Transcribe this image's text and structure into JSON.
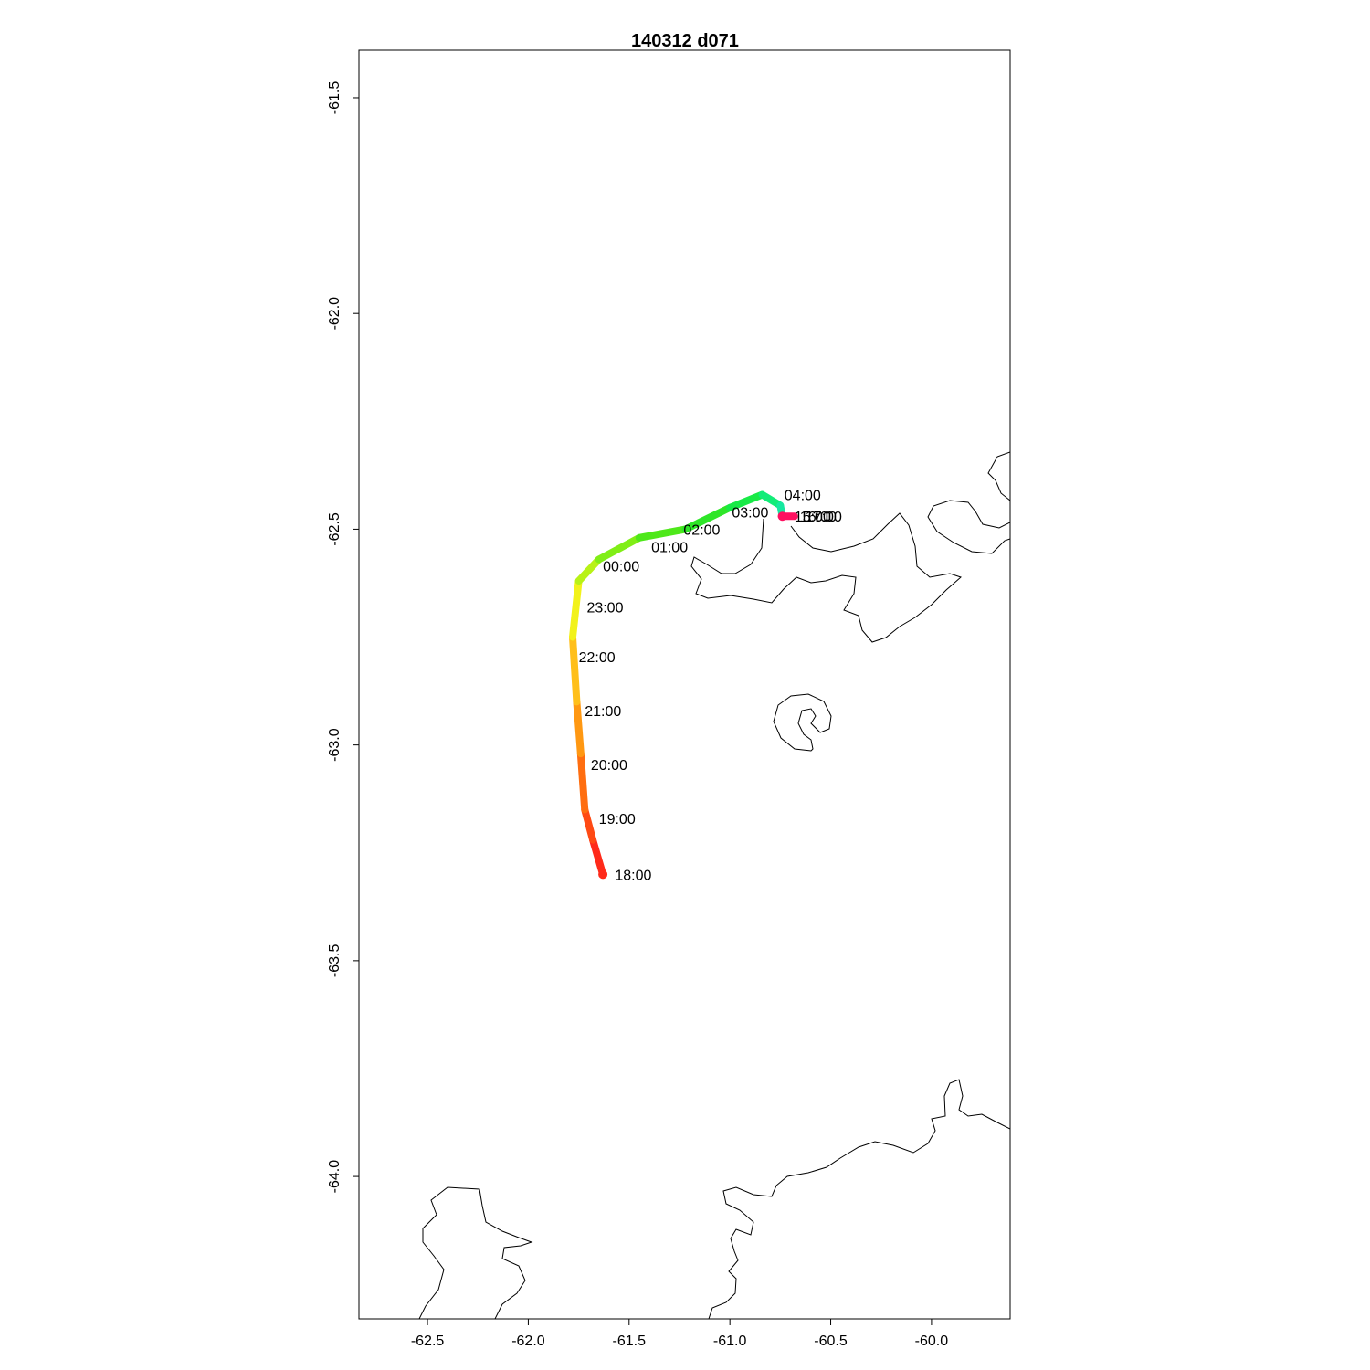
{
  "title": "140312   d071",
  "chart_data": {
    "type": "line",
    "title": "140312   d071",
    "xlabel": "",
    "ylabel": "",
    "xlim": [
      -62.84,
      -59.61
    ],
    "ylim": [
      -64.33,
      -61.39
    ],
    "x_ticks": [
      "-62.5",
      "-62.0",
      "-61.5",
      "-61.0",
      "-60.5",
      "-60.0"
    ],
    "y_ticks": [
      "-61.5",
      "-62.0",
      "-62.5",
      "-63.0",
      "-63.5",
      "-64.0"
    ],
    "grid": false,
    "track": [
      {
        "lon": -61.63,
        "lat": -63.3,
        "color": "#ff2a1a"
      },
      {
        "lon": -61.68,
        "lat": -63.22,
        "color": "#ff4a14"
      },
      {
        "lon": -61.72,
        "lat": -63.15,
        "color": "#ff6e10"
      },
      {
        "lon": -61.74,
        "lat": -63.02,
        "color": "#ff9812"
      },
      {
        "lon": -61.76,
        "lat": -62.9,
        "color": "#ffbf1a"
      },
      {
        "lon": -61.78,
        "lat": -62.75,
        "color": "#f2f21a"
      },
      {
        "lon": -61.75,
        "lat": -62.62,
        "color": "#b8f216"
      },
      {
        "lon": -61.65,
        "lat": -62.57,
        "color": "#80ee16"
      },
      {
        "lon": -61.45,
        "lat": -62.52,
        "color": "#4ee81a"
      },
      {
        "lon": -61.22,
        "lat": -62.5,
        "color": "#2ee628"
      },
      {
        "lon": -61.0,
        "lat": -62.45,
        "color": "#18ea46"
      },
      {
        "lon": -60.84,
        "lat": -62.42,
        "color": "#12ec78"
      },
      {
        "lon": -60.75,
        "lat": -62.445,
        "color": "#16e8a0"
      },
      {
        "lon": -60.74,
        "lat": -62.47,
        "color": "#ff1060"
      },
      {
        "lon": -60.68,
        "lat": -62.47,
        "color": "#ff1060"
      }
    ],
    "time_labels": [
      {
        "text": "18:00",
        "lon": -61.57,
        "lat": -63.3
      },
      {
        "text": "19:00",
        "lon": -61.65,
        "lat": -63.17
      },
      {
        "text": "20:00",
        "lon": -61.69,
        "lat": -63.045
      },
      {
        "text": "21:00",
        "lon": -61.72,
        "lat": -62.92
      },
      {
        "text": "22:00",
        "lon": -61.75,
        "lat": -62.795
      },
      {
        "text": "23:00",
        "lon": -61.71,
        "lat": -62.68
      },
      {
        "text": "00:00",
        "lon": -61.63,
        "lat": -62.585
      },
      {
        "text": "01:00",
        "lon": -61.39,
        "lat": -62.54
      },
      {
        "text": "02:00",
        "lon": -61.23,
        "lat": -62.5
      },
      {
        "text": "03:00",
        "lon": -60.99,
        "lat": -62.46
      },
      {
        "text": "04:00",
        "lon": -60.73,
        "lat": -62.42
      }
    ],
    "overlap_labels": [
      "15:00",
      "16:00",
      "17:00"
    ],
    "endpoint_markers": [
      {
        "lon": -61.63,
        "lat": -63.3,
        "color": "#ff2a1a"
      },
      {
        "lon": -60.74,
        "lat": -62.47,
        "color": "#ff1060"
      }
    ]
  }
}
